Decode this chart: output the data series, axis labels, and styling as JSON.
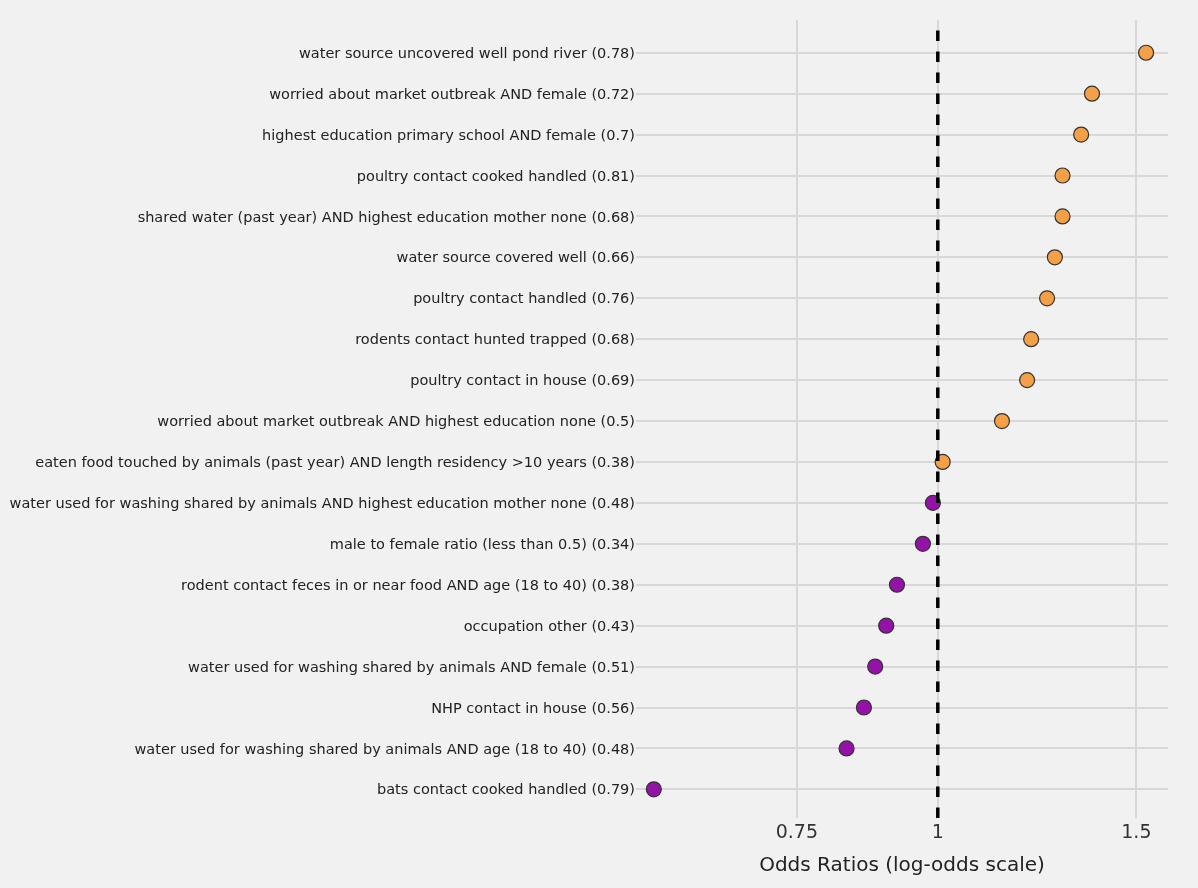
{
  "chart_data": {
    "type": "scatter",
    "orientation": "horizontal",
    "xlabel": "Odds Ratios (log-odds scale)",
    "categories": [
      "water source uncovered well pond river (0.78)",
      "worried about market outbreak AND female (0.72)",
      "highest education primary school AND female (0.7)",
      "poultry contact cooked handled (0.81)",
      "shared water (past year) AND highest education mother none (0.68)",
      "water source covered well (0.66)",
      "poultry contact handled (0.76)",
      "rodents contact hunted trapped (0.68)",
      "poultry contact in house (0.69)",
      "worried about market outbreak AND highest education none (0.5)",
      "eaten food touched by animals (past year) AND length residency >10 years (0.38)",
      "water used for washing shared by animals AND highest education mother none (0.48)",
      "male to female ratio (less than 0.5) (0.34)",
      "rodent contact feces in or near food AND age (18 to 40) (0.38)",
      "occupation other (0.43)",
      "water used for washing shared by animals AND female (0.51)",
      "NHP contact in house (0.56)",
      "water used for washing shared by animals AND age (18 to 40) (0.48)",
      "bats contact cooked handled (0.79)"
    ],
    "values": [
      1.53,
      1.37,
      1.34,
      1.29,
      1.29,
      1.27,
      1.25,
      1.21,
      1.2,
      1.14,
      1.01,
      0.99,
      0.97,
      0.92,
      0.9,
      0.88,
      0.86,
      0.83,
      0.56
    ],
    "colors": [
      "#f4a047",
      "#f4a047",
      "#f4a047",
      "#f4a047",
      "#f4a047",
      "#f4a047",
      "#f4a047",
      "#f4a047",
      "#f4a047",
      "#f4a047",
      "#f4a047",
      "#9512a8",
      "#9512a8",
      "#9512a8",
      "#9512a8",
      "#9512a8",
      "#9512a8",
      "#9512a8",
      "#9512a8"
    ],
    "log": "x",
    "xlim": [
      0.54,
      1.6
    ],
    "xticks": [
      0.75,
      1,
      1.5
    ],
    "ref_lines": [
      {
        "axis": "x",
        "value": 1,
        "color": "#000000",
        "line_style": "dashed"
      }
    ],
    "grid": true
  }
}
